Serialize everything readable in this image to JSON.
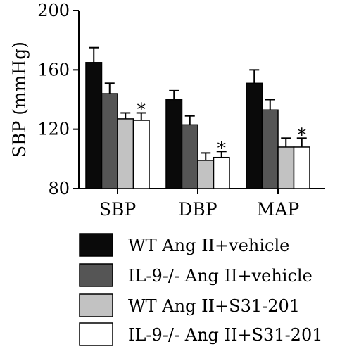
{
  "chart_data": {
    "type": "bar",
    "ylabel": "SBP (mmHg)",
    "ylim": [
      80,
      200
    ],
    "yticks": [
      "80",
      "120",
      "160",
      "200"
    ],
    "categories": [
      "SBP",
      "DBP",
      "MAP"
    ],
    "error_bars": true,
    "series": [
      {
        "name": "WT Ang II+vehicle",
        "color": "#0a0a0a",
        "values": [
          165,
          140,
          151
        ],
        "errors": [
          10,
          6,
          9
        ]
      },
      {
        "name": "IL-9-/- Ang II+vehicle",
        "color": "#555555",
        "values": [
          144,
          123,
          133
        ],
        "errors": [
          7,
          6,
          7
        ]
      },
      {
        "name": "WT Ang II+S31-201",
        "color": "#c2c2c2",
        "values": [
          127,
          99,
          108
        ],
        "errors": [
          4,
          5,
          6
        ]
      },
      {
        "name": "IL-9-/- Ang II+S31-201",
        "color": "#ffffff",
        "values": [
          126,
          101,
          108
        ],
        "errors": [
          5,
          4,
          6
        ]
      }
    ],
    "significance": [
      {
        "category": "SBP",
        "series": "IL-9-/- Ang II+S31-201",
        "mark": "*"
      },
      {
        "category": "DBP",
        "series": "IL-9-/- Ang II+S31-201",
        "mark": "*"
      },
      {
        "category": "MAP",
        "series": "IL-9-/- Ang II+S31-201",
        "mark": "*"
      }
    ],
    "legend_position": "bottom"
  }
}
